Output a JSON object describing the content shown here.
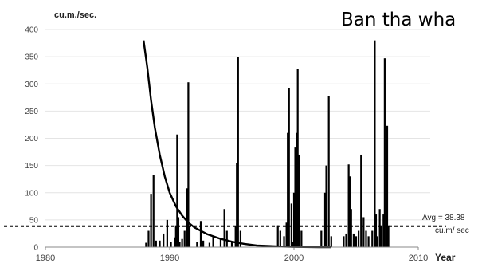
{
  "chart_data": {
    "type": "bar",
    "title": "Ban tha wha",
    "ylabel": "cu.m./sec.",
    "xlabel": "Year",
    "xlim": [
      1980,
      2010
    ],
    "ylim": [
      0,
      400
    ],
    "xticks": [
      1980,
      1990,
      2000,
      2010
    ],
    "yticks": [
      0,
      50,
      100,
      150,
      200,
      250,
      300,
      350,
      400
    ],
    "grid": "horizontal",
    "bar_color": "#000000",
    "series": [
      {
        "type": "bar",
        "x": [
          1988.1,
          1988.3,
          1988.5,
          1988.7,
          1988.9,
          1989.2,
          1989.5,
          1989.8,
          1990.1,
          1990.4,
          1990.5,
          1990.6,
          1990.7,
          1990.8,
          1991.0,
          1991.2,
          1991.4,
          1991.5,
          1991.6,
          1992.2,
          1992.5,
          1992.7,
          1993.2,
          1993.5,
          1994.1,
          1994.4,
          1994.6,
          1995.0,
          1995.3,
          1995.4,
          1995.5,
          1995.7,
          1998.7,
          1998.9,
          1999.2,
          1999.4,
          1999.5,
          1999.6,
          1999.8,
          1999.9,
          2000.0,
          2000.1,
          2000.2,
          2000.3,
          2000.4,
          2000.6,
          2002.2,
          2002.5,
          2002.6,
          2002.8,
          2003.0,
          2004.0,
          2004.2,
          2004.4,
          2004.5,
          2004.6,
          2004.8,
          2005.0,
          2005.2,
          2005.4,
          2005.6,
          2005.8,
          2006.0,
          2006.3,
          2006.5,
          2006.6,
          2006.7,
          2006.9,
          2007.0,
          2007.2,
          2007.3,
          2007.5,
          2007.6
        ],
        "values": [
          8,
          30,
          98,
          133,
          12,
          12,
          25,
          50,
          10,
          18,
          40,
          207,
          55,
          10,
          15,
          30,
          108,
          303,
          40,
          10,
          48,
          12,
          8,
          20,
          15,
          70,
          30,
          10,
          38,
          155,
          350,
          30,
          40,
          30,
          20,
          45,
          210,
          293,
          80,
          10,
          100,
          183,
          210,
          327,
          170,
          30,
          30,
          100,
          150,
          278,
          20,
          20,
          25,
          152,
          130,
          70,
          25,
          20,
          30,
          170,
          55,
          30,
          20,
          30,
          380,
          60,
          20,
          70,
          40,
          60,
          347,
          223,
          40
        ]
      },
      {
        "type": "line",
        "x": [
          1987.9,
          1988.2,
          1988.5,
          1988.8,
          1989.2,
          1989.6,
          1990.0,
          1990.5,
          1991.0,
          1991.5,
          1992.0,
          1993.0,
          1994.0,
          1995.0,
          1996.0,
          1997.0,
          1998.0,
          1999.0,
          2000.0,
          2002.0,
          2003.0
        ],
        "values": [
          380,
          330,
          270,
          220,
          170,
          130,
          100,
          75,
          58,
          45,
          36,
          24,
          16,
          10,
          6,
          3,
          2,
          1,
          0.5,
          0,
          0
        ]
      }
    ],
    "reference_line": {
      "value": 38.38,
      "label_line1": "Avg = 38.38",
      "label_line2": "cu.m/ sec",
      "style": "dashed"
    }
  }
}
